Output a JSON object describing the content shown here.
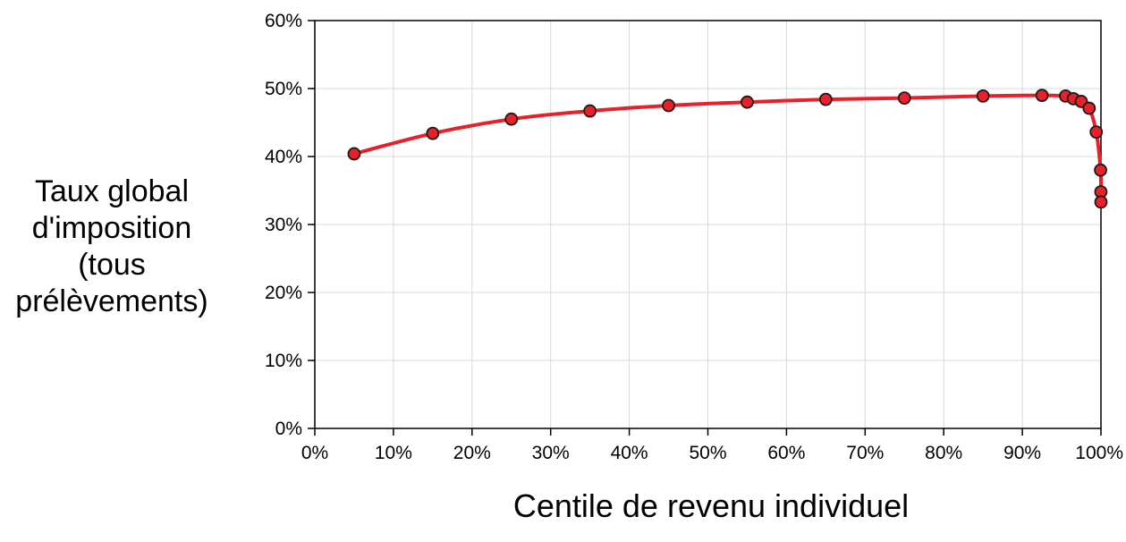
{
  "chart_data": {
    "type": "line",
    "title": "",
    "xlabel": "Centile de revenu individuel",
    "ylabel_lines": [
      "Taux global",
      "d'imposition",
      "(tous",
      "prélèvements)"
    ],
    "xlim": [
      0,
      100
    ],
    "ylim": [
      0,
      60
    ],
    "x_ticks": [
      0,
      10,
      20,
      30,
      40,
      50,
      60,
      70,
      80,
      90,
      100
    ],
    "y_ticks": [
      0,
      10,
      20,
      30,
      40,
      50,
      60
    ],
    "x_tick_labels": [
      "0%",
      "10%",
      "20%",
      "30%",
      "40%",
      "50%",
      "60%",
      "70%",
      "80%",
      "90%",
      "100%"
    ],
    "y_tick_labels": [
      "0%",
      "10%",
      "20%",
      "30%",
      "40%",
      "50%",
      "60%"
    ],
    "grid": true,
    "legend": "none",
    "line_color": "#e8202a",
    "marker_color": "#e8202a",
    "series": [
      {
        "x": [
          5,
          15,
          25,
          35,
          45,
          55,
          65,
          75,
          85,
          92.5,
          95.5,
          96.5,
          97.5,
          98.5,
          99.4,
          99.95,
          99.99,
          99.999
        ],
        "y": [
          40.4,
          43.4,
          45.5,
          46.7,
          47.5,
          48.0,
          48.4,
          48.6,
          48.9,
          49.0,
          48.9,
          48.5,
          48.1,
          47.1,
          43.6,
          38.0,
          34.8,
          33.3
        ]
      }
    ]
  }
}
